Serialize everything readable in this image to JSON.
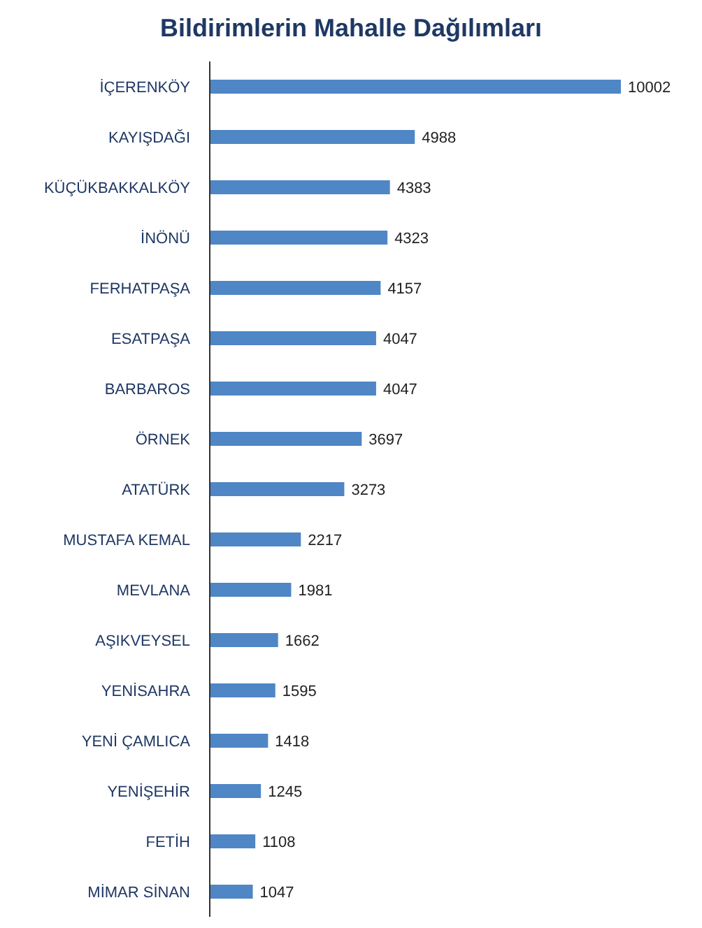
{
  "chart_data": {
    "type": "bar",
    "orientation": "horizontal",
    "title": "Bildirimlerin Mahalle Dağılımları",
    "categories": [
      "İÇERENKÖY",
      "KAYIŞDAĞI",
      "KÜÇÜKBAKKALKÖY",
      "İNÖNÜ",
      "FERHATPAŞA",
      "ESATPAŞA",
      "BARBAROS",
      "ÖRNEK",
      "ATATÜRK",
      "MUSTAFA KEMAL",
      "MEVLANA",
      "AŞIKVEYSEL",
      "YENİSAHRA",
      "YENİ ÇAMLICA",
      "YENİŞEHİR",
      "FETİH",
      "MİMAR SİNAN"
    ],
    "values": [
      10002,
      4988,
      4383,
      4323,
      4157,
      4047,
      4047,
      3697,
      3273,
      2217,
      1981,
      1662,
      1595,
      1418,
      1245,
      1108,
      1047
    ],
    "color": "#4f86c6",
    "data_labels": true
  }
}
